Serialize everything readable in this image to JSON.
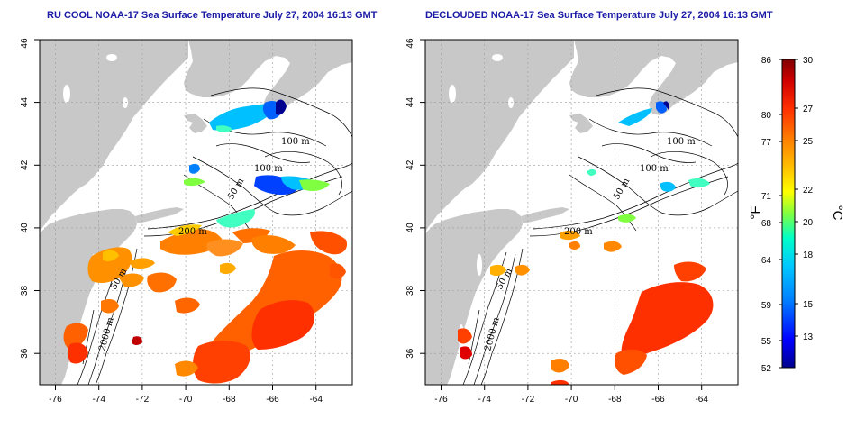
{
  "titles": {
    "left": "RU COOL NOAA-17 Sea Surface Temperature July 27, 2004 16:13 GMT",
    "right": "DECLOUDED NOAA-17 Sea Surface Temperature July 27, 2004 16:13 GMT"
  },
  "map": {
    "lon_ticks": [
      "-76",
      "-74",
      "-72",
      "-70",
      "-68",
      "-66",
      "-64"
    ],
    "lat_ticks": [
      "36",
      "38",
      "40",
      "42",
      "44",
      "46"
    ],
    "lon_range": [
      -77.2,
      -62.8
    ],
    "lat_range": [
      35.0,
      46.0
    ],
    "contour_labels": [
      "100 m",
      "100 m",
      "50 m",
      "200 m",
      "50 m",
      "2000 m"
    ],
    "land_color": "#c8c8c8",
    "ocean_color": "#ffffff",
    "grid": "dotted"
  },
  "colorbar": {
    "fahrenheit_ticks": [
      "86",
      "80",
      "77",
      "71",
      "68",
      "64",
      "59",
      "55",
      "52"
    ],
    "celsius_ticks": [
      "30",
      "27",
      "25",
      "22",
      "20",
      "18",
      "15",
      "13"
    ],
    "fahrenheit_unit": "°F",
    "celsius_unit": "°C",
    "range_c": [
      11,
      30
    ],
    "colors": [
      "#00008c",
      "#0000ff",
      "#0080ff",
      "#00c0ff",
      "#00ffcc",
      "#80ff40",
      "#ffff00",
      "#ffc000",
      "#ff8000",
      "#ff3000",
      "#c00000",
      "#800000"
    ]
  }
}
